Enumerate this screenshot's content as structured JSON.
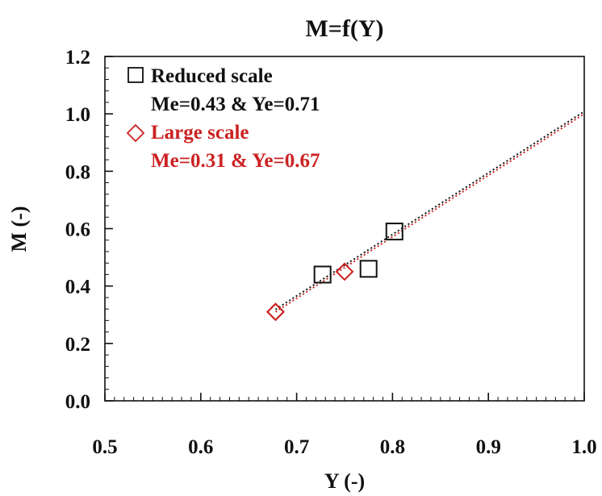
{
  "chart_data": {
    "type": "scatter",
    "title": "M=f(Y)",
    "xlabel": "Y (-)",
    "ylabel": "M (-)",
    "xlim": [
      0.5,
      1.0
    ],
    "ylim": [
      0.0,
      1.2
    ],
    "xticks": [
      "0.5",
      "0.6",
      "0.7",
      "0.8",
      "0.9",
      "1.0"
    ],
    "yticks": [
      "0.0",
      "0.2",
      "0.4",
      "0.6",
      "0.8",
      "1.0",
      "1.2"
    ],
    "grid": false,
    "legend_position": "top-left",
    "series": [
      {
        "name": "Reduced scale",
        "fit_label": "Me=0.43 & Ye=0.71",
        "marker": "square",
        "color": "#111111",
        "points": [
          {
            "x": 0.727,
            "y": 0.44
          },
          {
            "x": 0.775,
            "y": 0.46
          },
          {
            "x": 0.802,
            "y": 0.59
          }
        ],
        "fit_line": [
          [
            0.678,
            0.31
          ],
          [
            1.0,
            1.0
          ]
        ]
      },
      {
        "name": "Large scale",
        "fit_label": "Me=0.31 & Ye=0.67",
        "marker": "diamond",
        "color": "#cc2222",
        "points": [
          {
            "x": 0.678,
            "y": 0.31
          },
          {
            "x": 0.678,
            "y": 0.31
          },
          {
            "x": 0.75,
            "y": 0.45
          }
        ],
        "fit_line": [
          [
            0.678,
            0.31
          ],
          [
            1.0,
            1.0
          ]
        ]
      }
    ]
  }
}
